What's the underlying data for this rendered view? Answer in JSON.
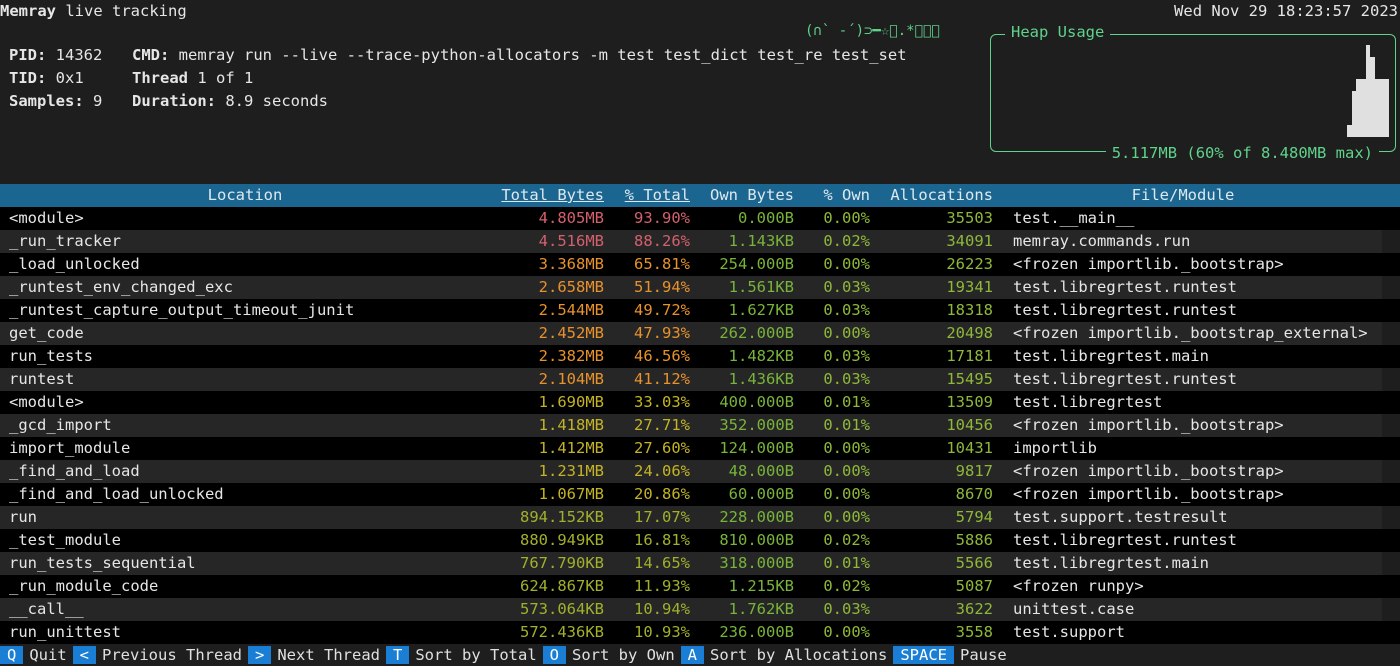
{
  "header": {
    "app": "Memray",
    "subtitle": " live tracking",
    "clock": "Wed Nov 29 18:23:57 2023",
    "kaomoji": "(∩` -´)⊃━☆ﾟ.*･｡ﾟ"
  },
  "info": {
    "pid_label": "PID:",
    "pid": " 14362",
    "cmd_label": "CMD:",
    "cmd": " memray run --live --trace-python-allocators -m test test_dict test_re test_set",
    "tid_label": "TID:",
    "tid": " 0x1",
    "thread_label": "Thread",
    "thread": " 1 of 1",
    "samples_label": "Samples:",
    "samples": " 9",
    "duration_label": "Duration:",
    "duration": " 8.9 seconds"
  },
  "heap": {
    "title": "Heap Usage",
    "summary": "5.117MB (60% of 8.480MB max)",
    "history": [
      0.13,
      0.5,
      0.63,
      0.63,
      1.0,
      0.87,
      0.63,
      0.63,
      0.63
    ],
    "color": "#5fd38a"
  },
  "table": {
    "columns": [
      "Location",
      "Total Bytes",
      "% Total",
      "Own Bytes",
      "% Own",
      "Allocations",
      "File/Module"
    ],
    "rows": [
      [
        "<module>",
        "4.805MB",
        "93.90%",
        "0.000B",
        "0.00%",
        "35503",
        "test.__main__"
      ],
      [
        "_run_tracker",
        "4.516MB",
        "88.26%",
        "1.143KB",
        "0.02%",
        "34091",
        "memray.commands.run"
      ],
      [
        "_load_unlocked",
        "3.368MB",
        "65.81%",
        "254.000B",
        "0.00%",
        "26223",
        "<frozen importlib._bootstrap>"
      ],
      [
        "_runtest_env_changed_exc",
        "2.658MB",
        "51.94%",
        "1.561KB",
        "0.03%",
        "19341",
        "test.libregrtest.runtest"
      ],
      [
        "_runtest_capture_output_timeout_junit",
        "2.544MB",
        "49.72%",
        "1.627KB",
        "0.03%",
        "18318",
        "test.libregrtest.runtest"
      ],
      [
        "get_code",
        "2.452MB",
        "47.93%",
        "262.000B",
        "0.00%",
        "20498",
        "<frozen importlib._bootstrap_external>"
      ],
      [
        "run_tests",
        "2.382MB",
        "46.56%",
        "1.482KB",
        "0.03%",
        "17181",
        "test.libregrtest.main"
      ],
      [
        "runtest",
        "2.104MB",
        "41.12%",
        "1.436KB",
        "0.03%",
        "15495",
        "test.libregrtest.runtest"
      ],
      [
        "<module>",
        "1.690MB",
        "33.03%",
        "400.000B",
        "0.01%",
        "13509",
        "test.libregrtest"
      ],
      [
        "_gcd_import",
        "1.418MB",
        "27.71%",
        "352.000B",
        "0.01%",
        "10456",
        "<frozen importlib._bootstrap>"
      ],
      [
        "import_module",
        "1.412MB",
        "27.60%",
        "124.000B",
        "0.00%",
        "10431",
        "importlib"
      ],
      [
        "_find_and_load",
        "1.231MB",
        "24.06%",
        "48.000B",
        "0.00%",
        "9817",
        "<frozen importlib._bootstrap>"
      ],
      [
        "_find_and_load_unlocked",
        "1.067MB",
        "20.86%",
        "60.000B",
        "0.00%",
        "8670",
        "<frozen importlib._bootstrap>"
      ],
      [
        "run",
        "894.152KB",
        "17.07%",
        "228.000B",
        "0.00%",
        "5794",
        "test.support.testresult"
      ],
      [
        "_test_module",
        "880.949KB",
        "16.81%",
        "810.000B",
        "0.02%",
        "5886",
        "test.libregrtest.runtest"
      ],
      [
        "run_tests_sequential",
        "767.790KB",
        "14.65%",
        "318.000B",
        "0.01%",
        "5566",
        "test.libregrtest.main"
      ],
      [
        "_run_module_code",
        "624.867KB",
        "11.93%",
        "1.215KB",
        "0.02%",
        "5087",
        "<frozen runpy>"
      ],
      [
        "__call__",
        "573.064KB",
        "10.94%",
        "1.762KB",
        "0.03%",
        "3622",
        "unittest.case"
      ],
      [
        "run_unittest",
        "572.436KB",
        "10.93%",
        "236.000B",
        "0.00%",
        "3558",
        "test.support"
      ]
    ]
  },
  "footer": [
    {
      "key": "Q",
      "label": "Quit"
    },
    {
      "key": "<",
      "label": "Previous Thread"
    },
    {
      "key": ">",
      "label": "Next Thread"
    },
    {
      "key": "T",
      "label": "Sort by Total"
    },
    {
      "key": "O",
      "label": "Sort by Own"
    },
    {
      "key": "A",
      "label": "Sort by Allocations"
    },
    {
      "key": "SPACE",
      "label": "Pause"
    }
  ]
}
